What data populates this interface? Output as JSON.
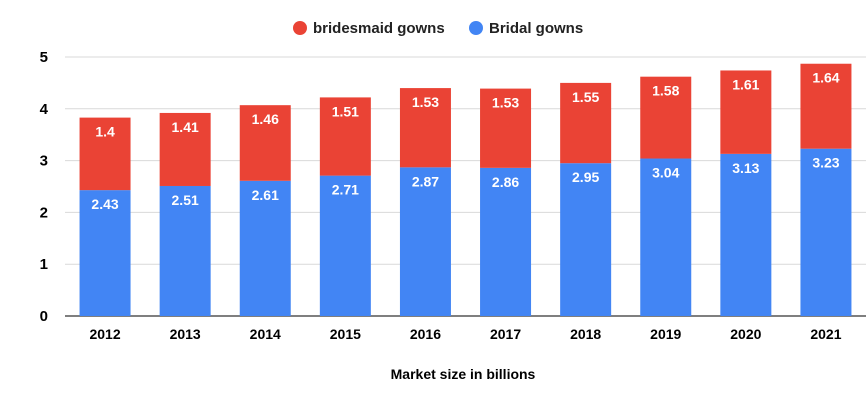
{
  "chart_data": {
    "type": "bar",
    "stacked": true,
    "categories": [
      "2012",
      "2013",
      "2014",
      "2015",
      "2016",
      "2017",
      "2018",
      "2019",
      "2020",
      "2021"
    ],
    "series": [
      {
        "name": "Bridal gowns",
        "color": "#4285f4",
        "values": [
          2.43,
          2.51,
          2.61,
          2.71,
          2.87,
          2.86,
          2.95,
          3.04,
          3.13,
          3.23
        ]
      },
      {
        "name": "bridesmaid gowns",
        "color": "#ea4335",
        "values": [
          1.4,
          1.41,
          1.46,
          1.51,
          1.53,
          1.53,
          1.55,
          1.58,
          1.61,
          1.64
        ]
      }
    ],
    "legend_order": [
      "bridesmaid gowns",
      "Bridal gowns"
    ],
    "legend_position": "top",
    "xlabel": "Market size in billions",
    "ylabel": "",
    "ylim": [
      0,
      5
    ],
    "yticks": [
      0,
      1,
      2,
      3,
      4,
      5
    ],
    "grid": true,
    "data_labels": true
  }
}
